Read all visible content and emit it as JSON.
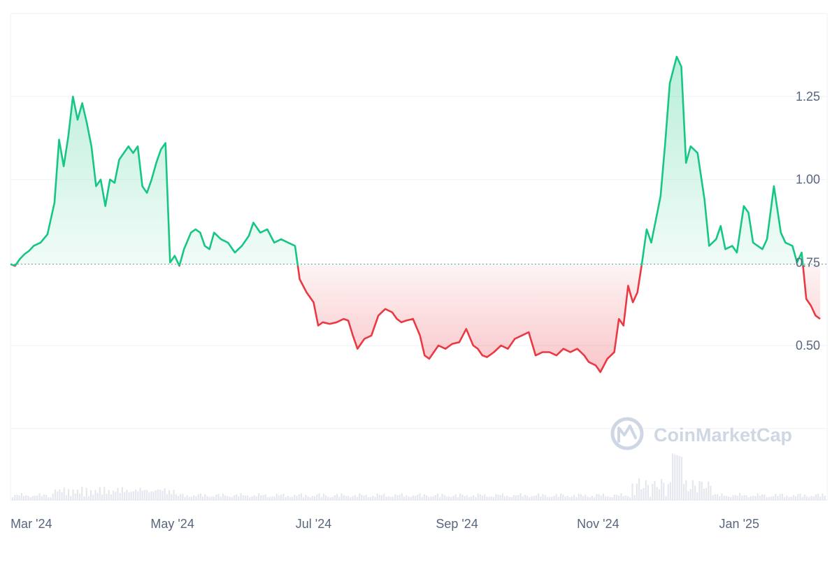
{
  "chart_data": {
    "type": "area",
    "baseline": 0.745,
    "ylim": [
      0.25,
      1.5
    ],
    "y_ticks": [
      0.5,
      0.75,
      1.0,
      1.25
    ],
    "y_tick_labels": [
      "0.50",
      "0.75",
      "1.00",
      "1.25"
    ],
    "x_ticks": [
      "2024-03-01",
      "2024-05-01",
      "2024-07-01",
      "2024-09-01",
      "2024-11-01",
      "2025-01-01"
    ],
    "x_tick_labels": [
      "Mar '24",
      "May '24",
      "Jul '24",
      "Sep '24",
      "Nov '24",
      "Jan '25"
    ],
    "xlim": [
      "2024-02-21",
      "2025-02-08"
    ],
    "grid": true,
    "colors": {
      "above": "#16c784",
      "below": "#ea3943",
      "grid": "#eff2f5",
      "baseline": "#8f96a3",
      "volume": "#e4e8ee",
      "tick_text": "#58667e",
      "watermark": "#cfd6e4"
    },
    "series": [
      {
        "points": [
          [
            "2024-02-21",
            0.745
          ],
          [
            "2024-02-23",
            0.74
          ],
          [
            "2024-02-25",
            0.76
          ],
          [
            "2024-02-27",
            0.775
          ],
          [
            "2024-02-29",
            0.785
          ],
          [
            "2024-03-02",
            0.8
          ],
          [
            "2024-03-05",
            0.81
          ],
          [
            "2024-03-08",
            0.835
          ],
          [
            "2024-03-11",
            0.93
          ],
          [
            "2024-03-13",
            1.12
          ],
          [
            "2024-03-15",
            1.04
          ],
          [
            "2024-03-17",
            1.13
          ],
          [
            "2024-03-19",
            1.25
          ],
          [
            "2024-03-21",
            1.18
          ],
          [
            "2024-03-23",
            1.23
          ],
          [
            "2024-03-25",
            1.17
          ],
          [
            "2024-03-27",
            1.1
          ],
          [
            "2024-03-29",
            0.98
          ],
          [
            "2024-03-31",
            1.0
          ],
          [
            "2024-04-02",
            0.92
          ],
          [
            "2024-04-04",
            1.0
          ],
          [
            "2024-04-06",
            0.99
          ],
          [
            "2024-04-08",
            1.06
          ],
          [
            "2024-04-10",
            1.08
          ],
          [
            "2024-04-12",
            1.1
          ],
          [
            "2024-04-14",
            1.08
          ],
          [
            "2024-04-16",
            1.1
          ],
          [
            "2024-04-18",
            0.98
          ],
          [
            "2024-04-20",
            0.96
          ],
          [
            "2024-04-22",
            1.0
          ],
          [
            "2024-04-24",
            1.05
          ],
          [
            "2024-04-26",
            1.09
          ],
          [
            "2024-04-28",
            1.11
          ],
          [
            "2024-04-30",
            0.75
          ],
          [
            "2024-05-02",
            0.77
          ],
          [
            "2024-05-04",
            0.74
          ],
          [
            "2024-05-06",
            0.79
          ],
          [
            "2024-05-09",
            0.84
          ],
          [
            "2024-05-11",
            0.85
          ],
          [
            "2024-05-13",
            0.84
          ],
          [
            "2024-05-15",
            0.8
          ],
          [
            "2024-05-17",
            0.79
          ],
          [
            "2024-05-19",
            0.84
          ],
          [
            "2024-05-22",
            0.82
          ],
          [
            "2024-05-25",
            0.81
          ],
          [
            "2024-05-28",
            0.78
          ],
          [
            "2024-05-31",
            0.8
          ],
          [
            "2024-06-03",
            0.83
          ],
          [
            "2024-06-05",
            0.87
          ],
          [
            "2024-06-08",
            0.84
          ],
          [
            "2024-06-11",
            0.85
          ],
          [
            "2024-06-14",
            0.81
          ],
          [
            "2024-06-17",
            0.82
          ],
          [
            "2024-06-20",
            0.81
          ],
          [
            "2024-06-23",
            0.8
          ],
          [
            "2024-06-25",
            0.7
          ],
          [
            "2024-06-28",
            0.66
          ],
          [
            "2024-07-01",
            0.63
          ],
          [
            "2024-07-03",
            0.56
          ],
          [
            "2024-07-05",
            0.57
          ],
          [
            "2024-07-08",
            0.565
          ],
          [
            "2024-07-11",
            0.57
          ],
          [
            "2024-07-14",
            0.58
          ],
          [
            "2024-07-16",
            0.575
          ],
          [
            "2024-07-18",
            0.53
          ],
          [
            "2024-07-20",
            0.49
          ],
          [
            "2024-07-23",
            0.52
          ],
          [
            "2024-07-26",
            0.53
          ],
          [
            "2024-07-29",
            0.59
          ],
          [
            "2024-08-01",
            0.61
          ],
          [
            "2024-08-04",
            0.6
          ],
          [
            "2024-08-06",
            0.58
          ],
          [
            "2024-08-08",
            0.57
          ],
          [
            "2024-08-10",
            0.575
          ],
          [
            "2024-08-13",
            0.58
          ],
          [
            "2024-08-16",
            0.53
          ],
          [
            "2024-08-18",
            0.47
          ],
          [
            "2024-08-20",
            0.46
          ],
          [
            "2024-08-22",
            0.48
          ],
          [
            "2024-08-24",
            0.5
          ],
          [
            "2024-08-27",
            0.49
          ],
          [
            "2024-08-30",
            0.505
          ],
          [
            "2024-09-02",
            0.51
          ],
          [
            "2024-09-05",
            0.55
          ],
          [
            "2024-09-08",
            0.5
          ],
          [
            "2024-09-10",
            0.49
          ],
          [
            "2024-09-12",
            0.47
          ],
          [
            "2024-09-14",
            0.465
          ],
          [
            "2024-09-17",
            0.48
          ],
          [
            "2024-09-20",
            0.5
          ],
          [
            "2024-09-23",
            0.49
          ],
          [
            "2024-09-26",
            0.52
          ],
          [
            "2024-09-29",
            0.53
          ],
          [
            "2024-10-02",
            0.54
          ],
          [
            "2024-10-05",
            0.47
          ],
          [
            "2024-10-08",
            0.48
          ],
          [
            "2024-10-11",
            0.48
          ],
          [
            "2024-10-14",
            0.47
          ],
          [
            "2024-10-17",
            0.49
          ],
          [
            "2024-10-20",
            0.48
          ],
          [
            "2024-10-23",
            0.49
          ],
          [
            "2024-10-26",
            0.47
          ],
          [
            "2024-10-28",
            0.45
          ],
          [
            "2024-10-31",
            0.44
          ],
          [
            "2024-11-02",
            0.42
          ],
          [
            "2024-11-05",
            0.46
          ],
          [
            "2024-11-08",
            0.48
          ],
          [
            "2024-11-10",
            0.58
          ],
          [
            "2024-11-12",
            0.56
          ],
          [
            "2024-11-14",
            0.68
          ],
          [
            "2024-11-16",
            0.63
          ],
          [
            "2024-11-18",
            0.66
          ],
          [
            "2024-11-20",
            0.75
          ],
          [
            "2024-11-22",
            0.85
          ],
          [
            "2024-11-24",
            0.81
          ],
          [
            "2024-11-26",
            0.88
          ],
          [
            "2024-11-28",
            0.95
          ],
          [
            "2024-11-30",
            1.11
          ],
          [
            "2024-12-02",
            1.29
          ],
          [
            "2024-12-05",
            1.37
          ],
          [
            "2024-12-07",
            1.34
          ],
          [
            "2024-12-09",
            1.05
          ],
          [
            "2024-12-11",
            1.1
          ],
          [
            "2024-12-14",
            1.08
          ],
          [
            "2024-12-17",
            0.94
          ],
          [
            "2024-12-19",
            0.8
          ],
          [
            "2024-12-22",
            0.82
          ],
          [
            "2024-12-24",
            0.86
          ],
          [
            "2024-12-26",
            0.79
          ],
          [
            "2024-12-29",
            0.8
          ],
          [
            "2024-12-31",
            0.78
          ],
          [
            "2025-01-03",
            0.92
          ],
          [
            "2025-01-05",
            0.9
          ],
          [
            "2025-01-07",
            0.81
          ],
          [
            "2025-01-09",
            0.8
          ],
          [
            "2025-01-11",
            0.79
          ],
          [
            "2025-01-13",
            0.82
          ],
          [
            "2025-01-16",
            0.98
          ],
          [
            "2025-01-19",
            0.84
          ],
          [
            "2025-01-21",
            0.81
          ],
          [
            "2025-01-24",
            0.8
          ],
          [
            "2025-01-26",
            0.75
          ],
          [
            "2025-01-28",
            0.78
          ],
          [
            "2025-01-30",
            0.64
          ],
          [
            "2025-02-01",
            0.62
          ],
          [
            "2025-02-03",
            0.59
          ],
          [
            "2025-02-05",
            0.58
          ]
        ]
      }
    ]
  },
  "watermark": {
    "text": "CoinMarketCap",
    "icon": "coinmarketcap-logo-icon"
  }
}
